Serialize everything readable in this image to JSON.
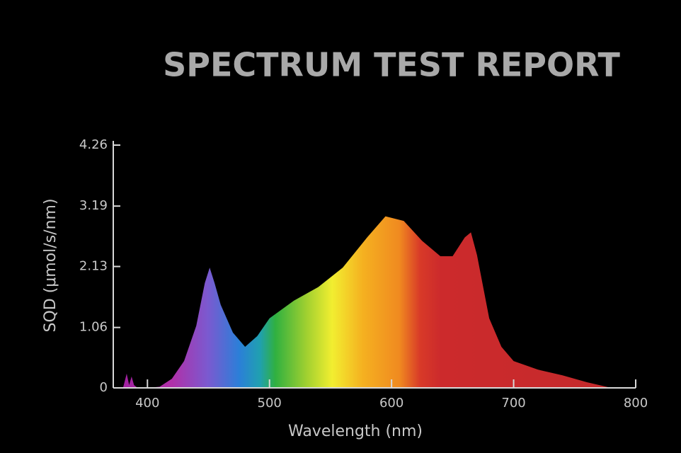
{
  "chart_data": {
    "type": "area",
    "title": "SPECTRUM TEST REPORT",
    "x_label": "Wavelength (nm)",
    "y_label": "SQD (μmol/s/nm)",
    "x": [
      380,
      383,
      385,
      387,
      389,
      392,
      400,
      410,
      420,
      430,
      440,
      447,
      451,
      455,
      460,
      470,
      480,
      490,
      500,
      520,
      540,
      560,
      580,
      595,
      610,
      625,
      640,
      650,
      660,
      665,
      670,
      680,
      690,
      700,
      720,
      740,
      760,
      780
    ],
    "values": [
      0,
      0.25,
      0.05,
      0.2,
      0.05,
      0,
      0,
      0.02,
      0.16,
      0.47,
      1.09,
      1.84,
      2.11,
      1.84,
      1.46,
      0.97,
      0.72,
      0.91,
      1.22,
      1.53,
      1.77,
      2.11,
      2.64,
      3.01,
      2.93,
      2.58,
      2.31,
      2.31,
      2.64,
      2.73,
      2.33,
      1.22,
      0.72,
      0.47,
      0.32,
      0.22,
      0.1,
      0
    ],
    "xlim": [
      372,
      800
    ],
    "ylim": [
      0,
      4.26
    ],
    "xticks": [
      400,
      500,
      600,
      700,
      800
    ],
    "yticks": [
      0,
      1.06,
      2.13,
      3.19,
      4.26
    ]
  }
}
